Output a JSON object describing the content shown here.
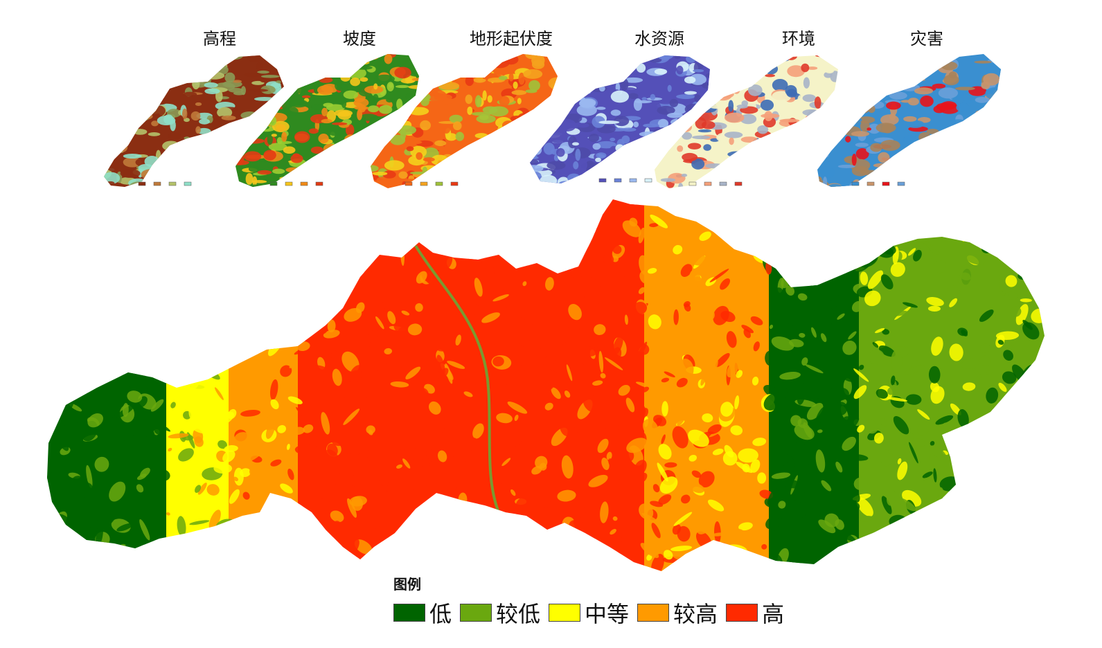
{
  "thumbnails": [
    {
      "title": "高程",
      "palette": [
        "#8b2e12",
        "#c07a3a",
        "#b4c26a",
        "#8fe0c8",
        "#8a9a55"
      ]
    },
    {
      "title": "坡度",
      "palette": [
        "#2f8a1f",
        "#f6c51b",
        "#f08a16",
        "#e23b14",
        "#9acd32"
      ]
    },
    {
      "title": "地形起伏度",
      "palette": [
        "#f56616",
        "#f5a31e",
        "#a0c23a",
        "#e93a14",
        "#f4d21c"
      ]
    },
    {
      "title": "水资源",
      "palette": [
        "#5450b8",
        "#6a82d8",
        "#9ab8ef",
        "#d8f2fb",
        "#4e4aa8"
      ]
    },
    {
      "title": "环境",
      "palette": [
        "#f5f3c8",
        "#f5a07a",
        "#a8b4c8",
        "#e03a2a",
        "#3d6bb5"
      ]
    },
    {
      "title": "灾害",
      "palette": [
        "#3a8fd0",
        "#c9956b",
        "#e8141b",
        "#6aa0d8",
        "#a8835a"
      ]
    }
  ],
  "main_map": {
    "zones_west_to_east": [
      "低",
      "中等",
      "较高",
      "高",
      "高",
      "高",
      "较高",
      "低",
      "较低"
    ]
  },
  "legend": {
    "title": "图例",
    "items": [
      {
        "label": "低",
        "color": "#006400"
      },
      {
        "label": "较低",
        "color": "#6aa80f"
      },
      {
        "label": "中等",
        "color": "#ffff00"
      },
      {
        "label": "较高",
        "color": "#ff9a00"
      },
      {
        "label": "高",
        "color": "#ff2a00"
      }
    ]
  },
  "colors": {
    "low": "#006400",
    "lower": "#6aa80f",
    "medium": "#ffff00",
    "higher": "#ff9a00",
    "high": "#ff2a00"
  }
}
